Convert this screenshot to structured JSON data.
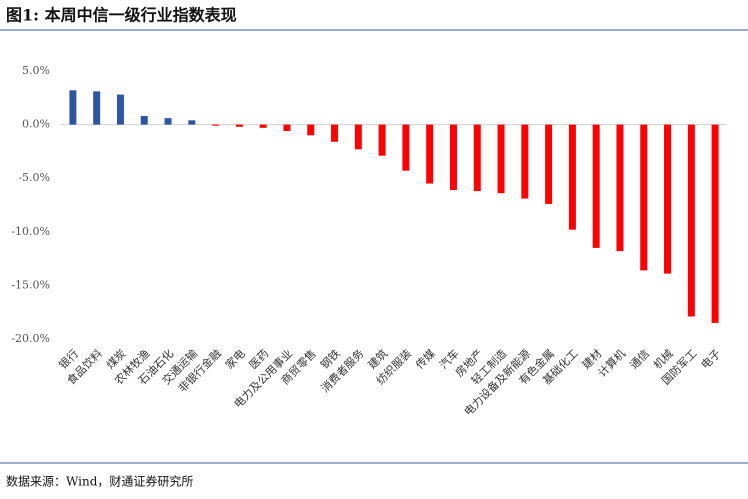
{
  "chart_data": {
    "type": "bar",
    "title": "图1: 本周中信一级行业指数表现",
    "source": "数据来源：Wind，财通证券研究所",
    "categories": [
      "银行",
      "食品饮料",
      "煤炭",
      "农林牧渔",
      "石油石化",
      "交通运输",
      "非银行金融",
      "家电",
      "医药",
      "电力及公用事业",
      "商贸零售",
      "钢铁",
      "消费者服务",
      "建筑",
      "纺织服装",
      "传媒",
      "汽车",
      "房地产",
      "轻工制造",
      "电力设备及新能源",
      "有色金属",
      "基础化工",
      "建材",
      "计算机",
      "通信",
      "机械",
      "国防军工",
      "电子"
    ],
    "values": [
      3.2,
      3.1,
      2.8,
      0.8,
      0.6,
      0.4,
      -0.1,
      -0.2,
      -0.3,
      -0.6,
      -1.0,
      -1.6,
      -2.3,
      -2.9,
      -4.3,
      -5.5,
      -6.1,
      -6.2,
      -6.4,
      -6.9,
      -7.4,
      -9.8,
      -11.5,
      -11.8,
      -13.6,
      -13.9,
      -17.9,
      -18.5
    ],
    "positive_color": "#2e54a4",
    "negative_color": "#ff0000",
    "ylim": [
      -20,
      5
    ],
    "yticks": [
      {
        "value": 5,
        "label": "5.0%"
      },
      {
        "value": 0,
        "label": "0.0%"
      },
      {
        "value": -5,
        "label": "-5.0%"
      },
      {
        "value": -10,
        "label": "-10.0%"
      },
      {
        "value": -15,
        "label": "-15.0%"
      },
      {
        "value": -20,
        "label": "-20.0%"
      }
    ]
  }
}
